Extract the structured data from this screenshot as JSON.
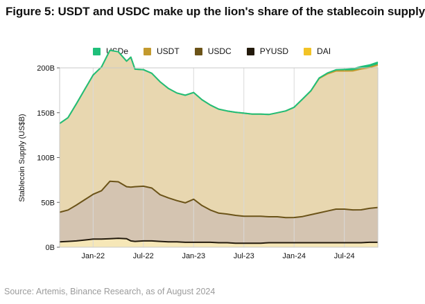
{
  "colors": {
    "USDe": "#1fbf7a",
    "USDT": "#c39a2e",
    "USDC": "#6b5318",
    "PYUSD": "#231a0c",
    "DAI": "#f2c326",
    "usdt_area": "#e8d7b0",
    "usdc_area": "#d4c4b1",
    "dai_area": "#f6e7b7"
  },
  "chart_data": {
    "type": "area",
    "title": "Figure 5: USDT and USDC make up the lion's share of the stablecoin supply",
    "xlabel": "",
    "ylabel": "Stablecoin Supply (US$B)",
    "ylim": [
      0,
      200
    ],
    "xlim": [
      0,
      38
    ],
    "x_unit": "months since Sep 2021",
    "yticks": [
      0,
      50,
      100,
      150,
      200
    ],
    "ytick_labels": [
      "0B",
      "50B",
      "100B",
      "150B",
      "200B"
    ],
    "xticks": [
      4,
      10,
      16,
      22,
      28,
      34
    ],
    "xtick_labels": [
      "Jan-22",
      "Jul-22",
      "Jan-23",
      "Jul-23",
      "Jan-24",
      "Jul-24"
    ],
    "grid": "vertical",
    "stacking": "cumulative",
    "x": [
      0,
      1,
      2,
      3,
      4,
      5,
      6,
      7,
      8,
      8.5,
      9,
      10,
      11,
      12,
      13,
      14,
      15,
      16,
      17,
      18,
      19,
      20,
      21,
      22,
      23,
      24,
      25,
      26,
      27,
      28,
      29,
      30,
      31,
      32,
      33,
      34,
      35,
      36,
      37,
      38
    ],
    "series": [
      {
        "name": "DAI",
        "values": [
          6,
          6.5,
          7,
          8,
          9,
          9,
          9.5,
          10,
          9.5,
          7,
          6.5,
          7,
          7,
          6.5,
          6,
          6,
          5.5,
          5.5,
          5.5,
          5.5,
          5,
          5,
          4.5,
          4.5,
          4.5,
          4.5,
          5,
          5,
          5,
          5,
          5,
          5,
          5,
          5,
          5,
          5,
          5,
          5,
          5.5,
          5.5
        ]
      },
      {
        "name": "PYUSD",
        "values": [
          0,
          0,
          0,
          0,
          0,
          0,
          0,
          0,
          0,
          0,
          0,
          0,
          0,
          0,
          0,
          0,
          0,
          0,
          0,
          0,
          0,
          0,
          0,
          0,
          0,
          0,
          0,
          0,
          0,
          0.1,
          0.2,
          0.3,
          0.3,
          0.4,
          0.5,
          0.5,
          0.6,
          0.7,
          0.8,
          0.8
        ]
      },
      {
        "name": "USDC",
        "values": [
          33,
          35,
          40,
          45,
          50,
          54,
          64,
          63,
          58,
          60,
          61,
          61,
          59,
          52,
          49,
          46,
          44,
          48,
          41,
          36,
          33,
          32,
          31,
          30,
          30,
          30,
          29,
          29,
          28,
          28,
          29,
          31,
          33,
          35,
          37,
          37,
          36,
          36,
          37,
          38
        ]
      },
      {
        "name": "USDT",
        "values": [
          99,
          103,
          113,
          123,
          133,
          138,
          146,
          145,
          140,
          145,
          131,
          130,
          128,
          126,
          122,
          120,
          120,
          119,
          118,
          117,
          116,
          115,
          115,
          115,
          114,
          114,
          114,
          116,
          119,
          123,
          131,
          138,
          150,
          153,
          154,
          154,
          155,
          157,
          157,
          159
        ]
      },
      {
        "name": "USDe",
        "values": [
          0,
          0,
          0,
          0,
          0,
          0,
          0,
          0,
          0,
          0,
          0,
          0,
          0,
          0,
          0,
          0,
          0,
          0,
          0,
          0,
          0,
          0,
          0,
          0,
          0,
          0,
          0,
          0,
          0,
          0,
          0,
          0.2,
          0.4,
          1.0,
          1.3,
          1.8,
          2.3,
          2.7,
          2.9,
          3.0
        ]
      }
    ],
    "legend": [
      "USDe",
      "USDT",
      "USDC",
      "PYUSD",
      "DAI"
    ],
    "legend_position": "top-center",
    "source": "Source: Artemis, Binance Research, as of August 2024"
  }
}
